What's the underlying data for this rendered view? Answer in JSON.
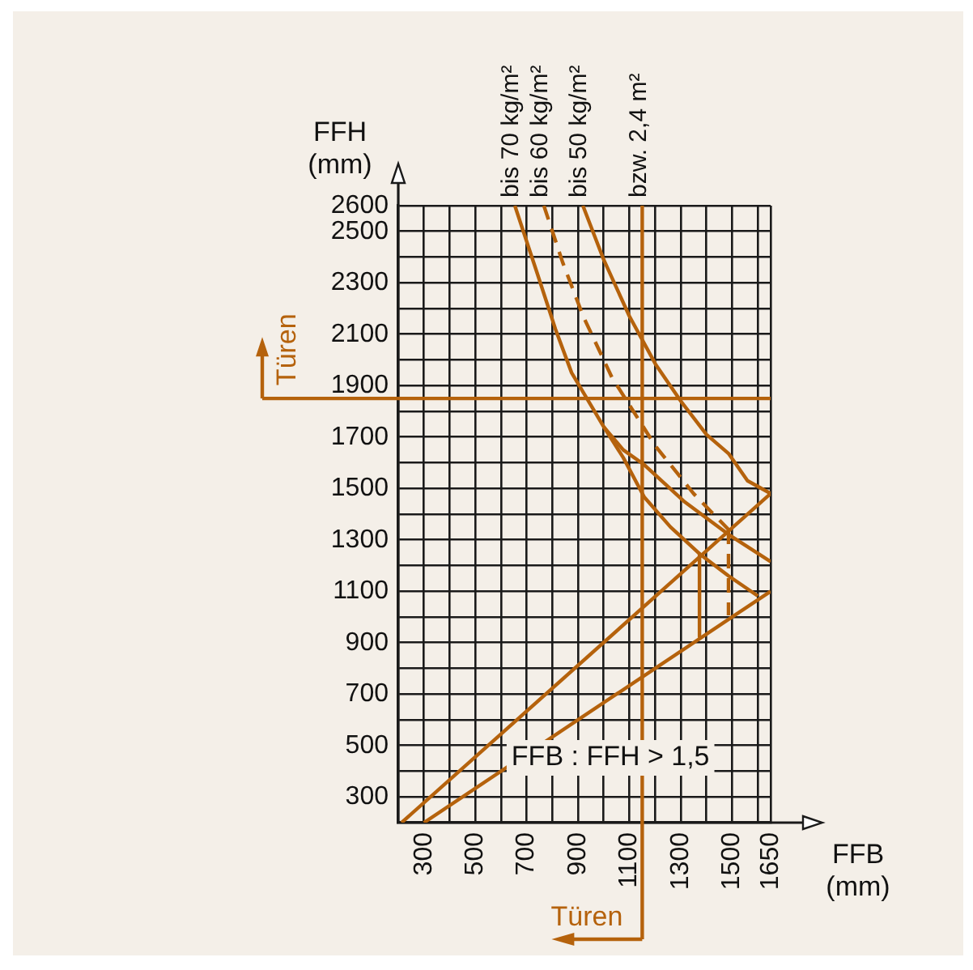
{
  "chart_data": {
    "type": "line",
    "xlabel": "FFB (mm)",
    "ylabel": "FFH (mm)",
    "xlim": [
      200,
      1650
    ],
    "ylim": [
      200,
      2600
    ],
    "xticks": [
      {
        "value": 200,
        "label": null
      },
      300,
      {
        "value": 400,
        "label": null
      },
      500,
      {
        "value": 600,
        "label": null
      },
      700,
      {
        "value": 800,
        "label": null
      },
      900,
      {
        "value": 1000,
        "label": null
      },
      1100,
      {
        "value": 1200,
        "label": null
      },
      1300,
      {
        "value": 1400,
        "label": null
      },
      1500,
      {
        "value": 1600,
        "label": null
      },
      1650
    ],
    "yticks": [
      {
        "value": 200,
        "label": null
      },
      300,
      {
        "value": 400,
        "label": null
      },
      500,
      {
        "value": 600,
        "label": null
      },
      700,
      {
        "value": 800,
        "label": null
      },
      900,
      {
        "value": 1000,
        "label": null
      },
      1100,
      {
        "value": 1200,
        "label": null
      },
      1300,
      {
        "value": 1400,
        "label": null
      },
      1500,
      {
        "value": 1600,
        "label": null
      },
      1700,
      {
        "value": 1800,
        "label": null
      },
      1900,
      {
        "value": 2000,
        "label": null
      },
      2100,
      {
        "value": 2200,
        "label": null
      },
      2300,
      {
        "value": 2400,
        "label": null
      },
      2500,
      2600
    ],
    "grid": true,
    "marker": "none",
    "series": [
      {
        "name": "bis 70 kg/m²",
        "color": "#b5620c",
        "x": [
          654,
          740,
          812,
          875,
          1000,
          1076,
          1158,
          1260,
          1373,
          1486,
          1600
        ],
        "values": [
          2600,
          2340,
          2120,
          1950,
          1740,
          1620,
          1466,
          1350,
          1246,
          1160,
          1082
        ]
      },
      {
        "name": "bis 60 kg/m²",
        "color": "#b5620c",
        "line_style": "dashed",
        "x": [
          767,
          840,
          920,
          1032,
          1200,
          1350,
          1486
        ],
        "values": [
          2600,
          2380,
          2170,
          1932,
          1667,
          1480,
          1340
        ]
      },
      {
        "name": "bis 50 kg/m²",
        "color": "#b5620c",
        "x": [
          919,
          1000,
          1100,
          1202,
          1300,
          1400,
          1486,
          1560,
          1650
        ],
        "values": [
          2600,
          2390,
          2170,
          1983,
          1840,
          1710,
          1636,
          1530,
          1480
        ]
      },
      {
        "color": "#b5620c",
        "x": [
          1000,
          1076,
          1158,
          1316,
          1486,
          1650
        ],
        "values": [
          1740,
          1650,
          1592,
          1447,
          1321,
          1215
        ]
      },
      {
        "color": "#b5620c",
        "line_style": "dashed",
        "x": [
          1486,
          1486
        ],
        "values": [
          1340,
          1006
        ]
      },
      {
        "color": "#b5620c",
        "x": [
          1373,
          1373
        ],
        "values": [
          1246,
          924
        ]
      },
      {
        "color": "#b5620c",
        "x": [
          213,
          1650
        ],
        "values": [
          200,
          1480
        ]
      },
      {
        "color": "#b5620c",
        "x": [
          300,
          1650
        ],
        "values": [
          200,
          1100
        ]
      }
    ],
    "ref_lines": [
      {
        "axis": "x",
        "value": 1150,
        "label": "bzw. 2,4 m²",
        "color": "#b5620c"
      },
      {
        "axis": "y",
        "value": 1850,
        "label": "Türen",
        "color": "#b5620c"
      }
    ],
    "annotations": [
      "FFB : FFH > 1,5",
      "Türen"
    ]
  }
}
